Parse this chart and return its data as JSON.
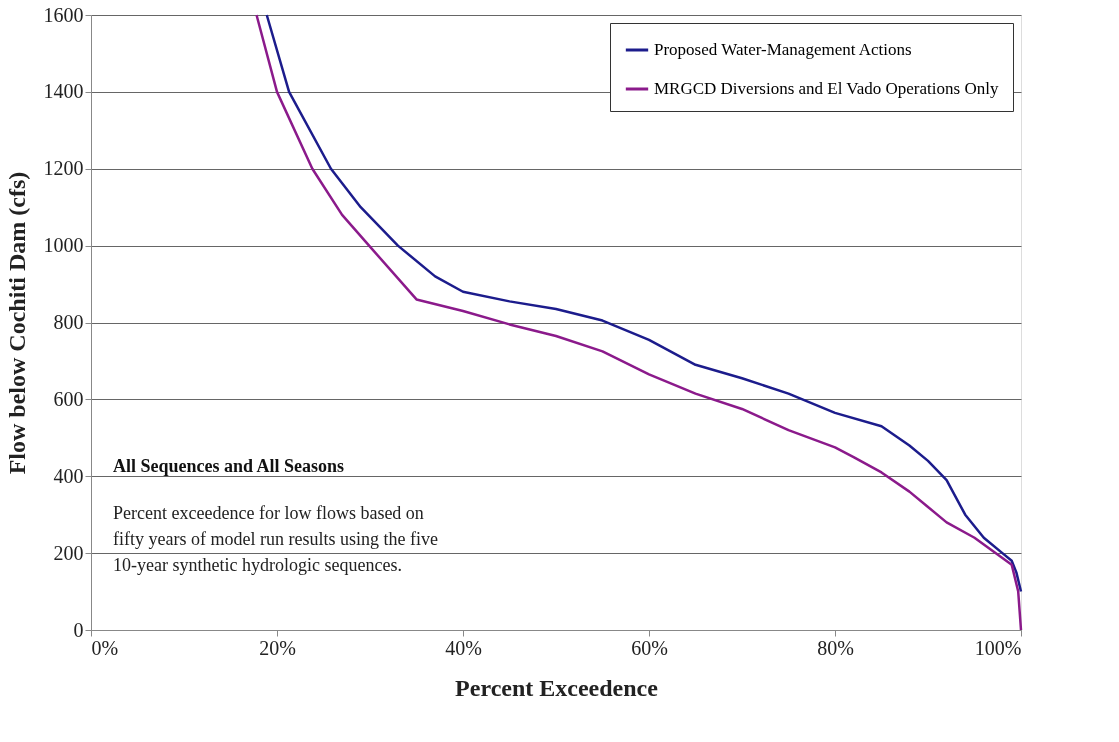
{
  "chart_data": {
    "type": "line",
    "xlabel": "Percent Exceedence",
    "ylabel": "Flow below Cochiti Dam (cfs)",
    "xlim": [
      0,
      100
    ],
    "ylim": [
      0,
      1600
    ],
    "xticks": [
      {
        "value": 0,
        "label": "0%"
      },
      {
        "value": 20,
        "label": "20%"
      },
      {
        "value": 40,
        "label": "40%"
      },
      {
        "value": 60,
        "label": "60%"
      },
      {
        "value": 80,
        "label": "80%"
      },
      {
        "value": 100,
        "label": "100%"
      }
    ],
    "yticks": [
      0,
      200,
      400,
      600,
      800,
      1000,
      1200,
      1400,
      1600
    ],
    "grid": "y",
    "legend": "top right",
    "line_style": "solid",
    "marker": "none",
    "series": [
      {
        "name": "Proposed Water-Management Actions",
        "color": "#1c1c8c",
        "x": [
          18.9,
          21.3,
          25.8,
          29,
          33.0,
          37,
          40,
          45,
          50,
          55,
          60,
          65,
          70,
          75,
          80,
          85,
          88,
          90,
          92,
          94,
          96,
          98,
          99,
          99.5,
          100
        ],
        "values": [
          1600,
          1400,
          1200,
          1100,
          1000,
          920,
          880,
          855,
          835,
          805,
          755,
          690,
          655,
          615,
          565,
          530,
          480,
          440,
          390,
          300,
          240,
          200,
          180,
          150,
          100
        ]
      },
      {
        "name": "MRGCD Diversions and El Vado Operations Only",
        "color": "#8b1a8b",
        "x": [
          17.8,
          20.0,
          23.8,
          27,
          29.9,
          35,
          40,
          45,
          50,
          55,
          60,
          65,
          70,
          75,
          80,
          82,
          85,
          88,
          90,
          92,
          95,
          97,
          99,
          99.7,
          100
        ],
        "values": [
          1600,
          1400,
          1200,
          1080,
          1000,
          860,
          830,
          795,
          765,
          725,
          665,
          615,
          575,
          520,
          475,
          450,
          410,
          360,
          320,
          280,
          240,
          205,
          170,
          100,
          0
        ]
      }
    ],
    "annotations": [
      "All  Sequences and All Seasons",
      "Percent exceedence for low flows based on",
      "fifty years of model run results using the five",
      "10-year synthetic hydrologic sequences."
    ]
  }
}
